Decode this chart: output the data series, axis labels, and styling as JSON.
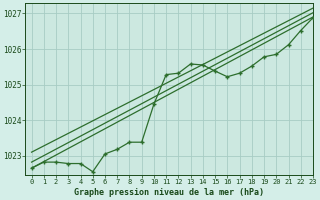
{
  "title": "Graphe pression niveau de la mer (hPa)",
  "bg_color": "#d4eee8",
  "plot_bg_color": "#cce8e0",
  "grid_color": "#a8ccc4",
  "line_color": "#2d6e2d",
  "text_color": "#1a4a1a",
  "xlim": [
    -0.5,
    23
  ],
  "ylim": [
    1022.45,
    1027.3
  ],
  "yticks": [
    1023,
    1024,
    1025,
    1026,
    1027
  ],
  "xticks": [
    0,
    1,
    2,
    3,
    4,
    5,
    6,
    7,
    8,
    9,
    10,
    11,
    12,
    13,
    14,
    15,
    16,
    17,
    18,
    19,
    20,
    21,
    22,
    23
  ],
  "main_x": [
    0,
    1,
    2,
    3,
    4,
    5,
    6,
    7,
    8,
    9,
    10,
    11,
    12,
    13,
    14,
    15,
    16,
    17,
    18,
    19,
    20,
    21,
    22,
    23
  ],
  "main_y": [
    1022.65,
    1022.82,
    1022.82,
    1022.78,
    1022.78,
    1022.55,
    1023.05,
    1023.18,
    1023.38,
    1023.38,
    1024.45,
    1025.28,
    1025.32,
    1025.58,
    1025.55,
    1025.38,
    1025.22,
    1025.32,
    1025.52,
    1025.78,
    1025.85,
    1026.12,
    1026.52,
    1026.88
  ],
  "trend1_x": [
    0,
    23
  ],
  "trend1_y": [
    1022.65,
    1026.9
  ],
  "trend2_x": [
    0,
    23
  ],
  "trend2_y": [
    1022.82,
    1027.02
  ],
  "trend3_x": [
    0,
    23
  ],
  "trend3_y": [
    1023.1,
    1027.15
  ]
}
